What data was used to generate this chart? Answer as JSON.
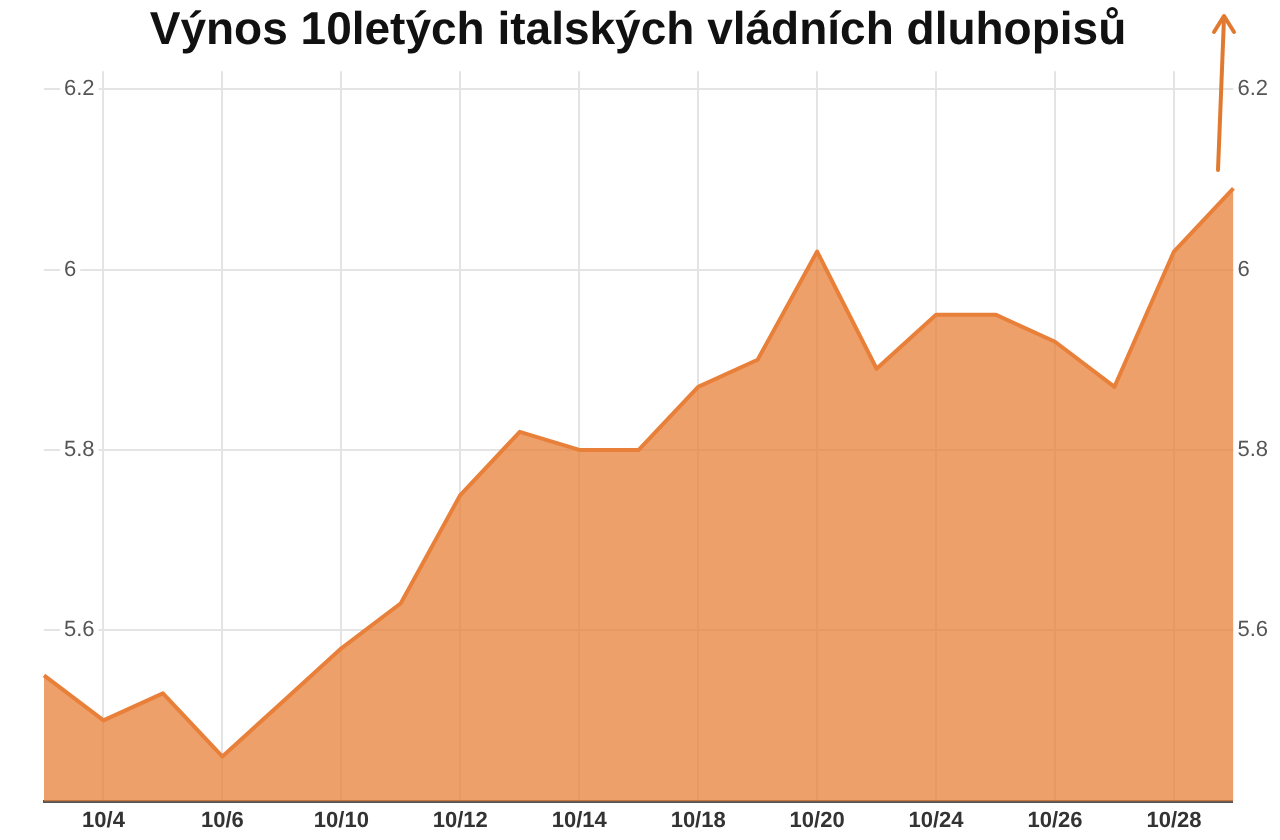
{
  "chart_data": {
    "type": "area",
    "title": "Výnos 10letých italských vládních dluhopisů",
    "categories": [
      null,
      "10/4",
      null,
      "10/6",
      null,
      "10/10",
      null,
      "10/12",
      null,
      "10/14",
      null,
      "10/18",
      null,
      "10/20",
      null,
      "10/24",
      null,
      "10/26",
      null,
      "10/28",
      null
    ],
    "series": [
      {
        "color": "#e8803a",
        "values": [
          5.55,
          5.5,
          5.53,
          5.46,
          5.52,
          5.58,
          5.63,
          5.75,
          5.82,
          5.8,
          5.8,
          5.87,
          5.9,
          6.02,
          5.89,
          5.95,
          5.95,
          5.92,
          5.87,
          6.02,
          6.09
        ]
      }
    ],
    "ylim": [
      5.41,
      6.22
    ],
    "yticks": [
      5.6,
      5.8,
      6,
      6.2
    ],
    "y2lim": [
      5.41,
      6.22
    ],
    "y2ticks": [
      5.6,
      5.8,
      6,
      6.2
    ],
    "grid": true,
    "legend": false,
    "marker": "none"
  }
}
